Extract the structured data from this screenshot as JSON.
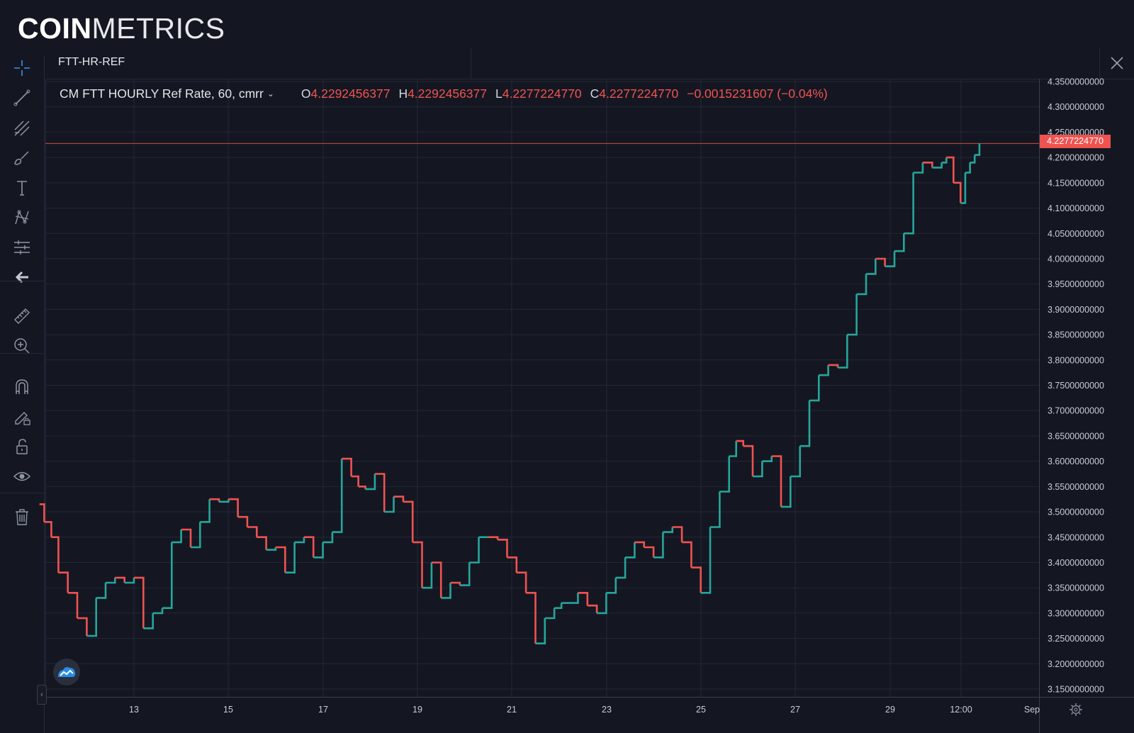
{
  "brand": {
    "bold": "COIN",
    "thin": "METRICS"
  },
  "tab": {
    "symbol": "FTT-HR-REF"
  },
  "legend": {
    "name": "CM FTT HOURLY Ref Rate, 60, cmrr",
    "open_label": "O",
    "open": "4.2292456377",
    "high_label": "H",
    "high": "4.2292456377",
    "low_label": "L",
    "low": "4.2277224770",
    "close_label": "C",
    "close": "4.2277224770",
    "change": "−0.0015231607 (−0.04%)"
  },
  "last_price_label": "4.2277224770",
  "toolbar": {
    "tools": [
      "crosshair-icon",
      "trend-line-icon",
      "pitchfork-icon",
      "brush-icon",
      "text-icon",
      "pattern-icon",
      "forecast-icon",
      "back-arrow-icon",
      "ruler-icon",
      "zoom-in-icon",
      "magnet-icon",
      "lock-drawing-icon",
      "unlock-icon",
      "eye-icon",
      "trash-icon"
    ]
  },
  "colors": {
    "up": "#26a69a",
    "down": "#ef5350",
    "grid": "#232735",
    "background": "#141722",
    "accent": "#2196f3"
  },
  "chart_data": {
    "type": "line",
    "title": "CM FTT HOURLY Ref Rate, 60, cmrr",
    "interval": "60",
    "x_ticks": [
      "13",
      "15",
      "17",
      "19",
      "21",
      "23",
      "25",
      "27",
      "29",
      "12:00",
      "Sep"
    ],
    "y_ticks": [
      "4.3500000000",
      "4.3000000000",
      "4.2500000000",
      "4.2000000000",
      "4.1500000000",
      "4.1000000000",
      "4.0500000000",
      "4.0000000000",
      "3.9500000000",
      "3.9000000000",
      "3.8500000000",
      "3.8000000000",
      "3.7500000000",
      "3.7000000000",
      "3.6500000000",
      "3.6000000000",
      "3.5500000000",
      "3.5000000000",
      "3.4500000000",
      "3.4000000000",
      "3.3500000000",
      "3.3000000000",
      "3.2500000000",
      "3.2000000000",
      "3.1500000000"
    ],
    "ylim": [
      3.14,
      4.35
    ],
    "grid": true,
    "last_value": 4.227722477,
    "series": [
      {
        "x": [
          11.0,
          11.1,
          11.25,
          11.4,
          11.6,
          11.8,
          12.0,
          12.2,
          12.4,
          12.6,
          12.8,
          13.0,
          13.2,
          13.4,
          13.6,
          13.8,
          14.0,
          14.2,
          14.4,
          14.6,
          14.8,
          15.0,
          15.2,
          15.4,
          15.6,
          15.8,
          16.0,
          16.2,
          16.4,
          16.6,
          16.8,
          17.0,
          17.2,
          17.4,
          17.6,
          17.75,
          17.9,
          18.1,
          18.3,
          18.5,
          18.7,
          18.9,
          19.1,
          19.3,
          19.5,
          19.7,
          19.9,
          20.1,
          20.3,
          20.5,
          20.7,
          20.9,
          21.1,
          21.3,
          21.5,
          21.7,
          21.9,
          22.05,
          22.2,
          22.4,
          22.6,
          22.8,
          23.0,
          23.2,
          23.4,
          23.6,
          23.8,
          24.0,
          24.2,
          24.4,
          24.6,
          24.8,
          25.0,
          25.2,
          25.4,
          25.6,
          25.75,
          25.9,
          26.1,
          26.3,
          26.5,
          26.7,
          26.9,
          27.1,
          27.3,
          27.5,
          27.7,
          27.9,
          28.1,
          28.3,
          28.5,
          28.7,
          28.9,
          29.1,
          29.3,
          29.5,
          29.7,
          29.9,
          30.1,
          30.2,
          30.35,
          30.5,
          30.6,
          30.7,
          30.8,
          30.9
        ],
        "values": [
          3.515,
          3.48,
          3.45,
          3.38,
          3.34,
          3.29,
          3.255,
          3.33,
          3.36,
          3.37,
          3.36,
          3.37,
          3.27,
          3.3,
          3.31,
          3.44,
          3.465,
          3.43,
          3.48,
          3.525,
          3.52,
          3.525,
          3.49,
          3.47,
          3.45,
          3.425,
          3.43,
          3.38,
          3.44,
          3.45,
          3.41,
          3.44,
          3.46,
          3.605,
          3.57,
          3.55,
          3.545,
          3.575,
          3.5,
          3.53,
          3.52,
          3.44,
          3.35,
          3.4,
          3.33,
          3.36,
          3.355,
          3.4,
          3.45,
          3.45,
          3.445,
          3.41,
          3.38,
          3.34,
          3.24,
          3.29,
          3.31,
          3.32,
          3.32,
          3.34,
          3.315,
          3.3,
          3.34,
          3.37,
          3.41,
          3.44,
          3.43,
          3.41,
          3.46,
          3.47,
          3.44,
          3.39,
          3.34,
          3.47,
          3.54,
          3.61,
          3.64,
          3.63,
          3.57,
          3.6,
          3.61,
          3.51,
          3.57,
          3.63,
          3.72,
          3.77,
          3.79,
          3.785,
          3.85,
          3.93,
          3.97,
          4.0,
          3.985,
          4.015,
          4.05,
          4.17,
          4.19,
          4.18,
          4.19,
          4.2,
          4.15,
          4.11,
          4.17,
          4.19,
          4.205,
          4.228
        ]
      }
    ]
  }
}
